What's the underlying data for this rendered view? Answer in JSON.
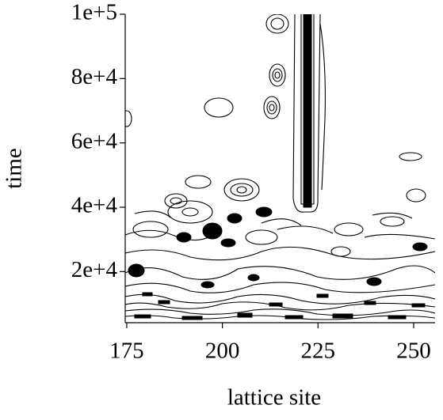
{
  "chart_data": {
    "type": "contour",
    "xlabel": "lattice site",
    "ylabel": "time",
    "xlim": [
      174.6,
      255.6
    ],
    "xticks": [
      175,
      200,
      225,
      250
    ],
    "ylim": [
      4100,
      100000
    ],
    "yticks": [
      {
        "value": 20000,
        "label": "2e+4"
      },
      {
        "value": 40000,
        "label": "4e+4"
      },
      {
        "value": 60000,
        "label": "6e+4"
      },
      {
        "value": 80000,
        "label": "8e+4"
      },
      {
        "value": 100000,
        "label": "1e+5"
      }
    ]
  }
}
